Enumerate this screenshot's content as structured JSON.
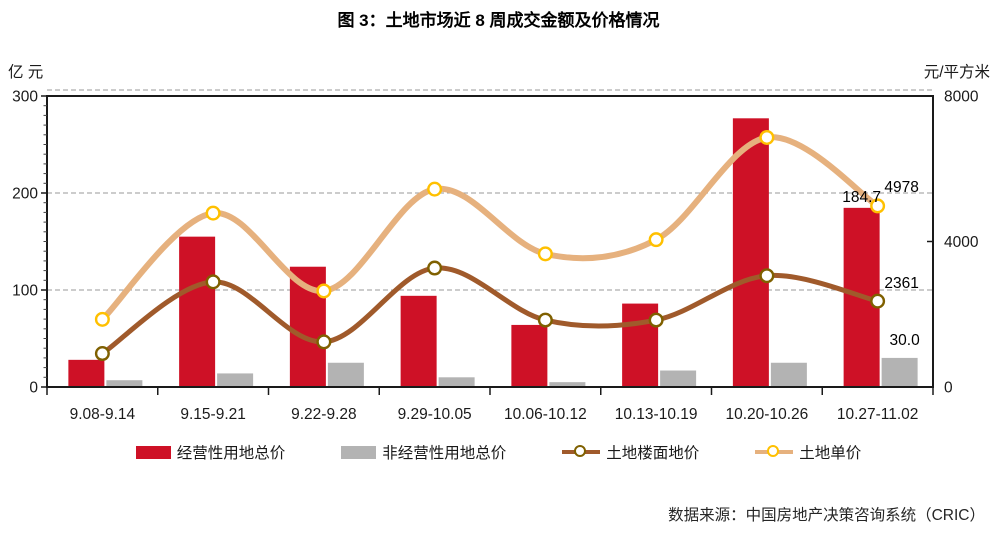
{
  "title": "图 3：土地市场近 8 周成交金额及价格情况",
  "source": "数据来源：中国房地产决策咨询系统（CRIC）",
  "left_axis": {
    "unit": "亿 元",
    "ticks": [
      0,
      100,
      200,
      300
    ],
    "max": 300
  },
  "right_axis": {
    "unit": "元/平方米",
    "ticks": [
      0,
      4000,
      8000
    ],
    "max": 8000
  },
  "legend": {
    "items": [
      {
        "label": "经营性用地总价"
      },
      {
        "label": "非经营性用地总价"
      },
      {
        "label": "土地楼面地价"
      },
      {
        "label": "土地单价"
      }
    ]
  },
  "colors": {
    "bar_red": "#CE1126",
    "bar_gray": "#B3B3B3",
    "line_dark": "#A05A2B",
    "line_dark_ring": "#7F6000",
    "line_light": "#E6B17E",
    "line_light_ring": "#FFC000",
    "grid": "#999999",
    "axis": "#1a1a1a",
    "text": "#1a1a1a"
  },
  "chart_data": {
    "type": "bar",
    "subtype": "combo bar+line, dual axis",
    "categories": [
      "9.08-9.14",
      "9.15-9.21",
      "9.22-9.28",
      "9.29-10.05",
      "10.06-10.12",
      "10.13-10.19",
      "10.20-10.26",
      "10.27-11.02"
    ],
    "series": [
      {
        "name": "经营性用地总价",
        "type": "bar",
        "axis": "left",
        "color": "#CE1126",
        "values": [
          28,
          155,
          124,
          94,
          64,
          86,
          277,
          184.7
        ],
        "end_label": "184.7"
      },
      {
        "name": "非经营性用地总价",
        "type": "bar",
        "axis": "left",
        "color": "#B3B3B3",
        "values": [
          7,
          14,
          25,
          10,
          5,
          17,
          25,
          30
        ],
        "end_label": "30.0"
      },
      {
        "name": "土地楼面地价",
        "type": "line",
        "axis": "right",
        "color": "#A05A2B",
        "marker_ring": "#7F6000",
        "values": [
          920,
          2890,
          1240,
          3270,
          1840,
          1840,
          3060,
          2361
        ],
        "end_label": "2361"
      },
      {
        "name": "土地单价",
        "type": "line",
        "axis": "right",
        "color": "#E6B17E",
        "marker_ring": "#FFC000",
        "values": [
          1860,
          4780,
          2640,
          5440,
          3660,
          4050,
          6860,
          4978
        ],
        "end_label": "4978"
      }
    ],
    "title": "图 3：土地市场近 8 周成交金额及价格情况",
    "xlabel": "",
    "ylabel_left": "亿 元",
    "ylabel_right": "元/平方米",
    "left_ylim": [
      0,
      300
    ],
    "right_ylim": [
      0,
      8000
    ],
    "grid": "horizontal dashed at left-axis 100, 200, 300",
    "legend_position": "bottom"
  }
}
